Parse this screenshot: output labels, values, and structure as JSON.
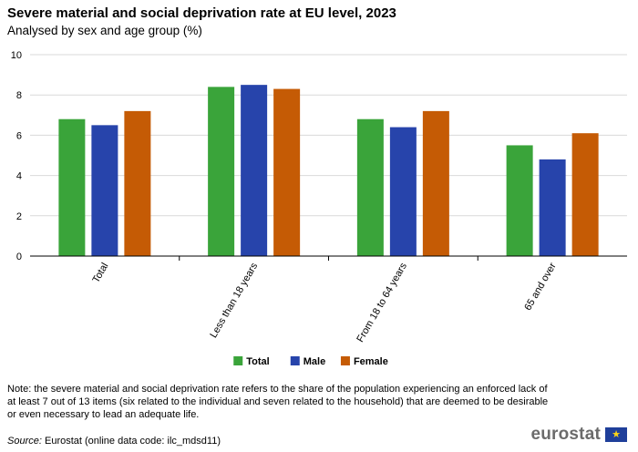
{
  "header": {
    "title": "Severe material and social deprivation rate at EU level, 2023",
    "subtitle": "Analysed by sex and age group (%)"
  },
  "chart_data": {
    "type": "bar",
    "title": "Severe material and social deprivation rate at EU level, 2023",
    "subtitle": "Analysed by sex and age group (%)",
    "categories": [
      "Total",
      "Less than 18 years",
      "From 18 to 64 years",
      "65 and over"
    ],
    "series": [
      {
        "name": "Total",
        "color": "#3aa43a",
        "values": [
          6.8,
          8.4,
          6.8,
          5.5
        ]
      },
      {
        "name": "Male",
        "color": "#2744ab",
        "values": [
          6.5,
          8.5,
          6.4,
          4.8
        ]
      },
      {
        "name": "Female",
        "color": "#c55b05",
        "values": [
          7.2,
          8.3,
          7.2,
          6.1
        ]
      }
    ],
    "y_ticks": [
      "0",
      "2",
      "4",
      "6",
      "8",
      "10"
    ],
    "ylim": [
      0,
      10
    ],
    "xlabel": "",
    "ylabel": "",
    "grid": true,
    "legend_position": "bottom-center"
  },
  "footer": {
    "note": "Note: the severe material and social deprivation rate refers to the share of the population experiencing an enforced lack of at least 7 out of 13 items (six related to the individual and seven related to the household) that are deemed to be desirable or even necessary to lead an adequate life.",
    "source_label": "Source:",
    "source_text": "Eurostat (online data code: ilc_mdsd11)",
    "logo_text": "eurostat",
    "flag_star": "★"
  }
}
